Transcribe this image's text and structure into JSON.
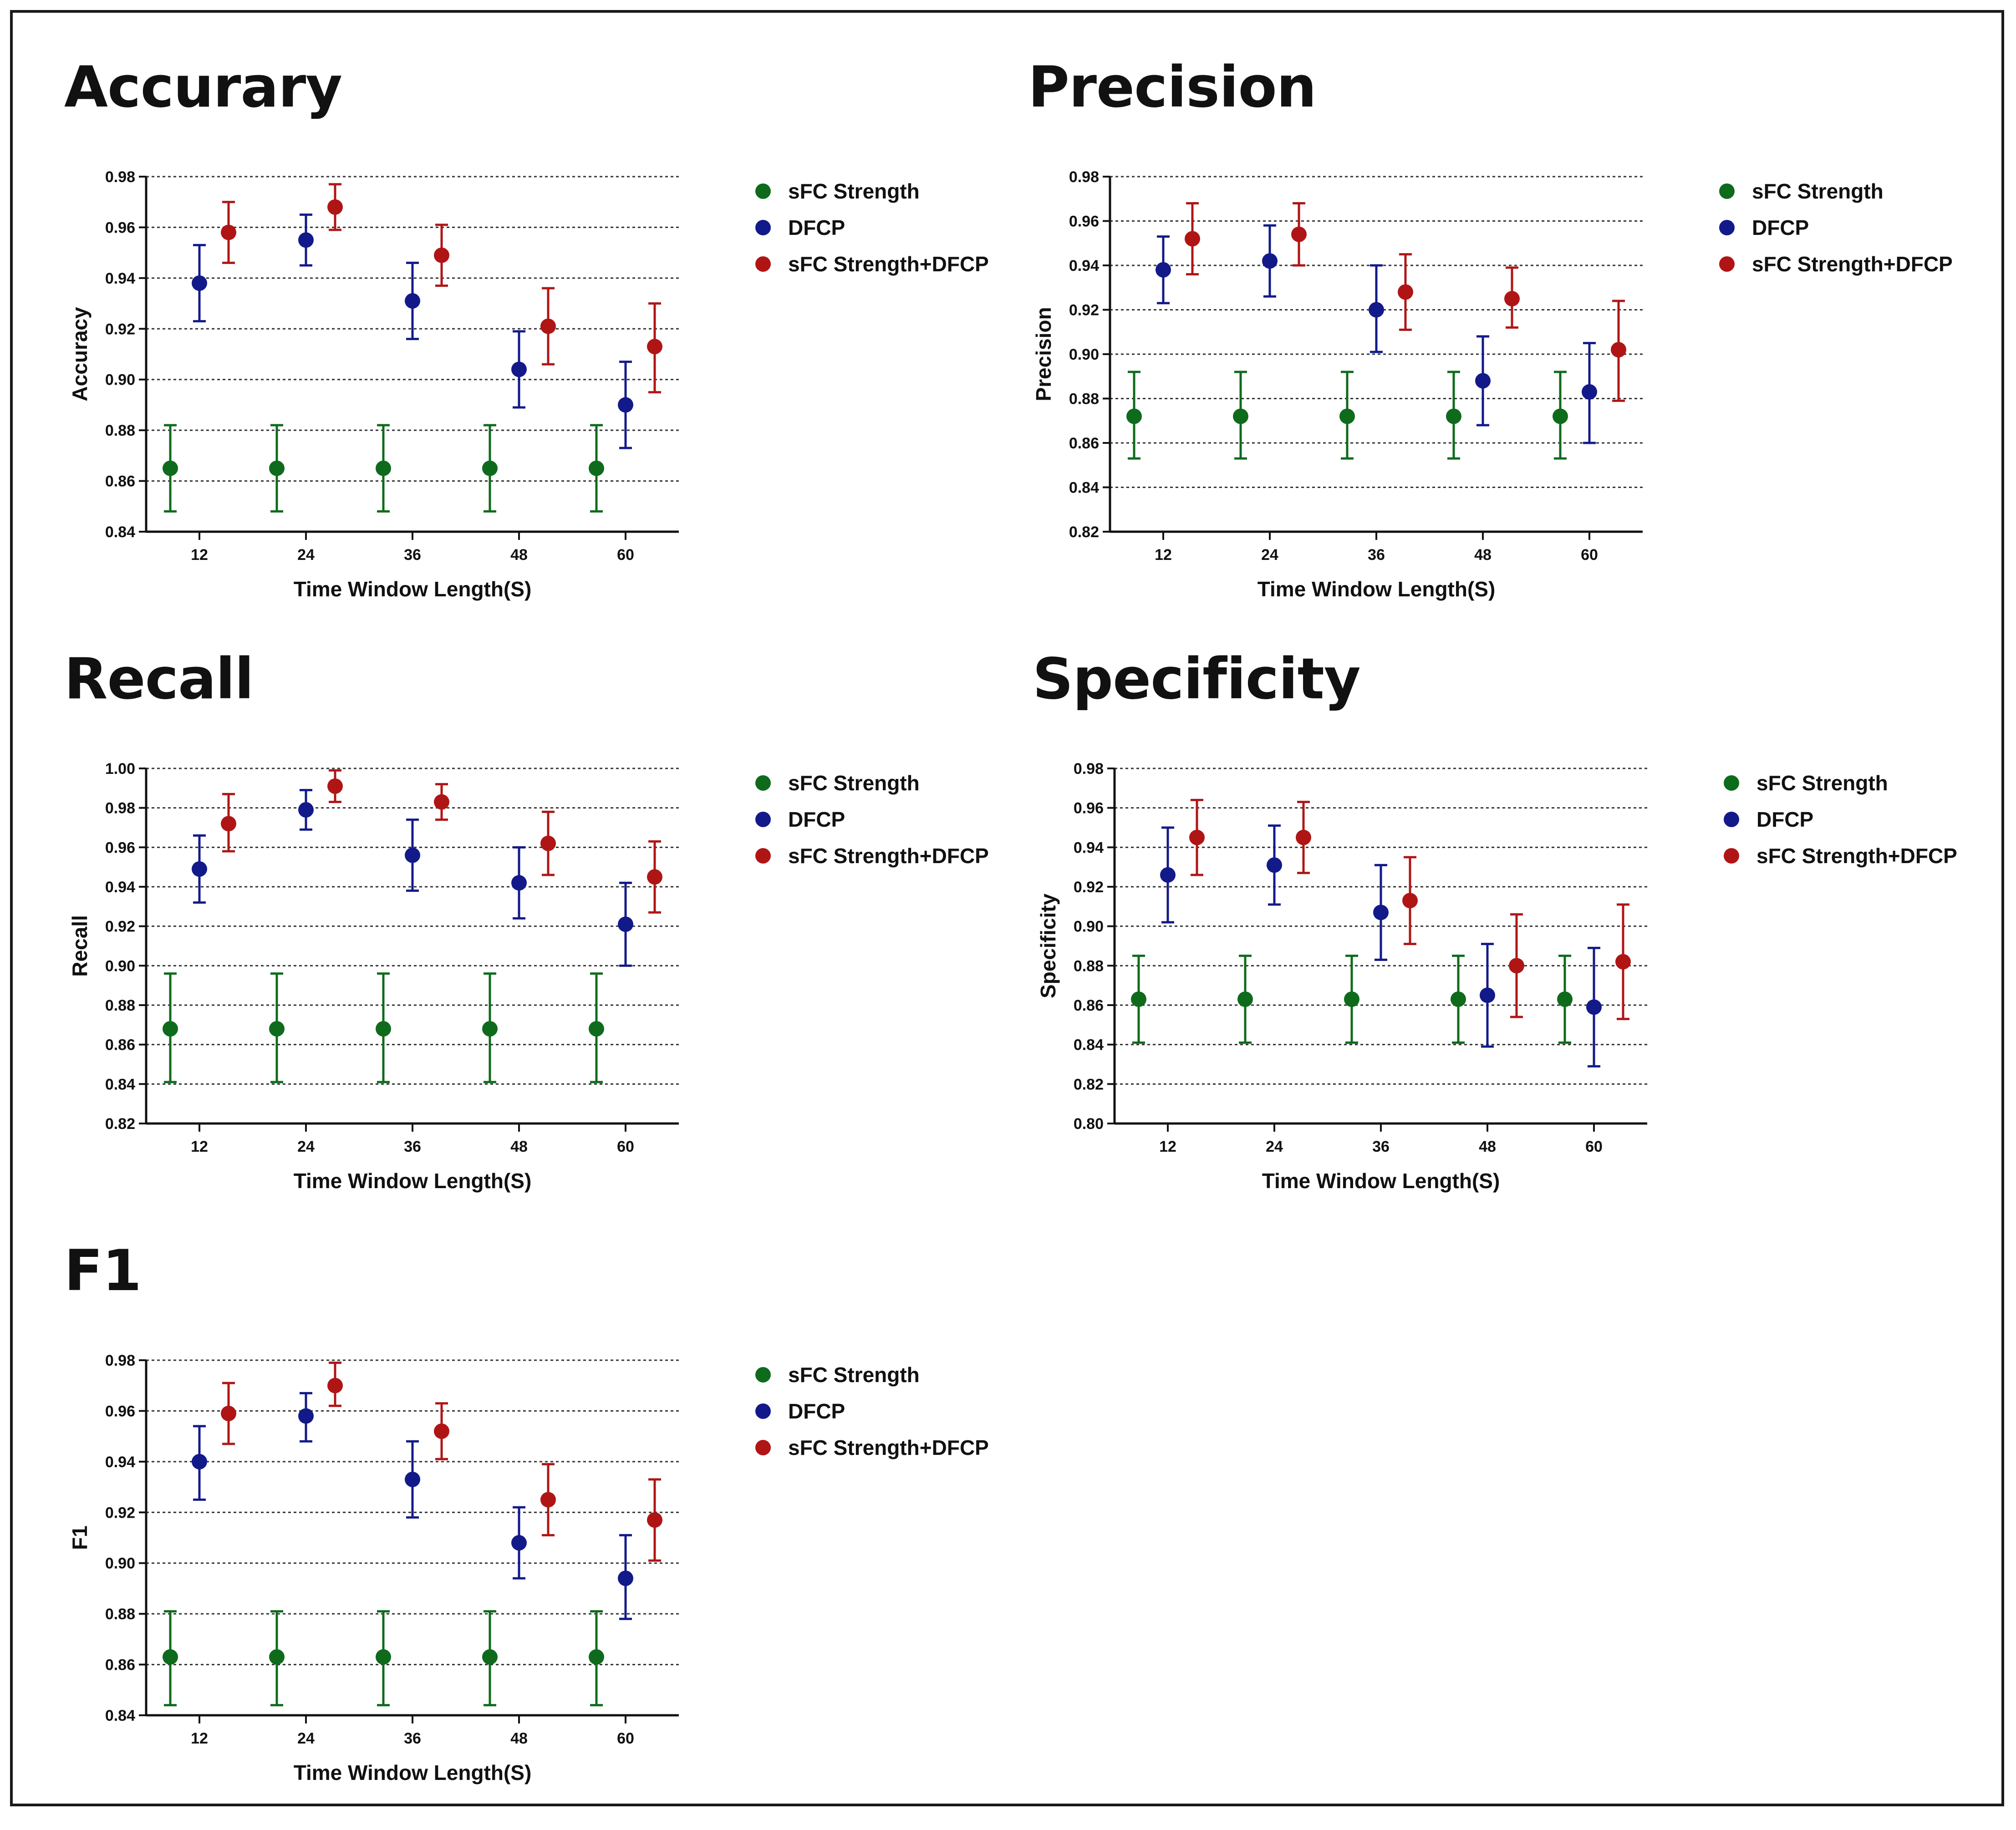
{
  "colors": {
    "sfc": "#0f6b1c",
    "dfcp": "#121a8a",
    "combo": "#b01515"
  },
  "chart_data": [
    {
      "type": "scatter",
      "title": "Accurary",
      "xlabel": "Time Window Length(S)",
      "ylabel": "Accuracy",
      "categories": [
        "12",
        "24",
        "36",
        "48",
        "60"
      ],
      "ylim": [
        0.84,
        0.98
      ],
      "ytick_step": 0.02,
      "grid": true,
      "legend": "right",
      "series": [
        {
          "name": "sFC Strength",
          "color": "#0f6b1c",
          "values": [
            0.865,
            0.865,
            0.865,
            0.865,
            0.865
          ],
          "err_low": [
            0.848,
            0.848,
            0.848,
            0.848,
            0.848
          ],
          "err_high": [
            0.882,
            0.882,
            0.882,
            0.882,
            0.882
          ]
        },
        {
          "name": "DFCP",
          "color": "#121a8a",
          "values": [
            0.938,
            0.955,
            0.931,
            0.904,
            0.89
          ],
          "err_low": [
            0.923,
            0.945,
            0.916,
            0.889,
            0.873
          ],
          "err_high": [
            0.953,
            0.965,
            0.946,
            0.919,
            0.907
          ]
        },
        {
          "name": "sFC Strength+DFCP",
          "color": "#b01515",
          "values": [
            0.958,
            0.968,
            0.949,
            0.921,
            0.913
          ],
          "err_low": [
            0.946,
            0.959,
            0.937,
            0.906,
            0.895
          ],
          "err_high": [
            0.97,
            0.977,
            0.961,
            0.936,
            0.93
          ]
        }
      ]
    },
    {
      "type": "scatter",
      "title": "Precision",
      "xlabel": "Time Window Length(S)",
      "ylabel": "Precision",
      "categories": [
        "12",
        "24",
        "36",
        "48",
        "60"
      ],
      "ylim": [
        0.82,
        0.98
      ],
      "ytick_step": 0.02,
      "grid": true,
      "legend": "right",
      "series": [
        {
          "name": "sFC Strength",
          "color": "#0f6b1c",
          "values": [
            0.872,
            0.872,
            0.872,
            0.872,
            0.872
          ],
          "err_low": [
            0.853,
            0.853,
            0.853,
            0.853,
            0.853
          ],
          "err_high": [
            0.892,
            0.892,
            0.892,
            0.892,
            0.892
          ]
        },
        {
          "name": "DFCP",
          "color": "#121a8a",
          "values": [
            0.938,
            0.942,
            0.92,
            0.888,
            0.883
          ],
          "err_low": [
            0.923,
            0.926,
            0.901,
            0.868,
            0.86
          ],
          "err_high": [
            0.953,
            0.958,
            0.94,
            0.908,
            0.905
          ]
        },
        {
          "name": "sFC Strength+DFCP",
          "color": "#b01515",
          "values": [
            0.952,
            0.954,
            0.928,
            0.925,
            0.902
          ],
          "err_low": [
            0.936,
            0.94,
            0.911,
            0.912,
            0.879
          ],
          "err_high": [
            0.968,
            0.968,
            0.945,
            0.939,
            0.924
          ]
        }
      ]
    },
    {
      "type": "scatter",
      "title": "Recall",
      "xlabel": "Time Window Length(S)",
      "ylabel": "Recall",
      "categories": [
        "12",
        "24",
        "36",
        "48",
        "60"
      ],
      "ylim": [
        0.82,
        1.0
      ],
      "ytick_step": 0.02,
      "grid": true,
      "legend": "right",
      "series": [
        {
          "name": "sFC Strength",
          "color": "#0f6b1c",
          "values": [
            0.868,
            0.868,
            0.868,
            0.868,
            0.868
          ],
          "err_low": [
            0.841,
            0.841,
            0.841,
            0.841,
            0.841
          ],
          "err_high": [
            0.896,
            0.896,
            0.896,
            0.896,
            0.896
          ]
        },
        {
          "name": "DFCP",
          "color": "#121a8a",
          "values": [
            0.949,
            0.979,
            0.956,
            0.942,
            0.921
          ],
          "err_low": [
            0.932,
            0.969,
            0.938,
            0.924,
            0.9
          ],
          "err_high": [
            0.966,
            0.989,
            0.974,
            0.96,
            0.942
          ]
        },
        {
          "name": "sFC Strength+DFCP",
          "color": "#b01515",
          "values": [
            0.972,
            0.991,
            0.983,
            0.962,
            0.945
          ],
          "err_low": [
            0.958,
            0.983,
            0.974,
            0.946,
            0.927
          ],
          "err_high": [
            0.987,
            0.999,
            0.992,
            0.978,
            0.963
          ]
        }
      ]
    },
    {
      "type": "scatter",
      "title": "Specificity",
      "xlabel": "Time Window Length(S)",
      "ylabel": "Specificity",
      "categories": [
        "12",
        "24",
        "36",
        "48",
        "60"
      ],
      "ylim": [
        0.8,
        0.98
      ],
      "ytick_step": 0.02,
      "grid": true,
      "legend": "right",
      "series": [
        {
          "name": "sFC Strength",
          "color": "#0f6b1c",
          "values": [
            0.863,
            0.863,
            0.863,
            0.863,
            0.863
          ],
          "err_low": [
            0.841,
            0.841,
            0.841,
            0.841,
            0.841
          ],
          "err_high": [
            0.885,
            0.885,
            0.885,
            0.885,
            0.885
          ]
        },
        {
          "name": "DFCP",
          "color": "#121a8a",
          "values": [
            0.926,
            0.931,
            0.907,
            0.865,
            0.859
          ],
          "err_low": [
            0.902,
            0.911,
            0.883,
            0.839,
            0.829
          ],
          "err_high": [
            0.95,
            0.951,
            0.931,
            0.891,
            0.889
          ]
        },
        {
          "name": "sFC Strength+DFCP",
          "color": "#b01515",
          "values": [
            0.945,
            0.945,
            0.913,
            0.88,
            0.882
          ],
          "err_low": [
            0.926,
            0.927,
            0.891,
            0.854,
            0.853
          ],
          "err_high": [
            0.964,
            0.963,
            0.935,
            0.906,
            0.911
          ]
        }
      ]
    },
    {
      "type": "scatter",
      "title": "F1",
      "xlabel": "Time Window Length(S)",
      "ylabel": "F1",
      "categories": [
        "12",
        "24",
        "36",
        "48",
        "60"
      ],
      "ylim": [
        0.84,
        0.98
      ],
      "ytick_step": 0.02,
      "grid": true,
      "legend": "right",
      "series": [
        {
          "name": "sFC Strength",
          "color": "#0f6b1c",
          "values": [
            0.863,
            0.863,
            0.863,
            0.863,
            0.863
          ],
          "err_low": [
            0.844,
            0.844,
            0.844,
            0.844,
            0.844
          ],
          "err_high": [
            0.881,
            0.881,
            0.881,
            0.881,
            0.881
          ]
        },
        {
          "name": "DFCP",
          "color": "#121a8a",
          "values": [
            0.94,
            0.958,
            0.933,
            0.908,
            0.894
          ],
          "err_low": [
            0.925,
            0.948,
            0.918,
            0.894,
            0.878
          ],
          "err_high": [
            0.954,
            0.967,
            0.948,
            0.922,
            0.911
          ]
        },
        {
          "name": "sFC Strength+DFCP",
          "color": "#b01515",
          "values": [
            0.959,
            0.97,
            0.952,
            0.925,
            0.917
          ],
          "err_low": [
            0.947,
            0.962,
            0.941,
            0.911,
            0.901
          ],
          "err_high": [
            0.971,
            0.979,
            0.963,
            0.939,
            0.933
          ]
        }
      ]
    }
  ]
}
